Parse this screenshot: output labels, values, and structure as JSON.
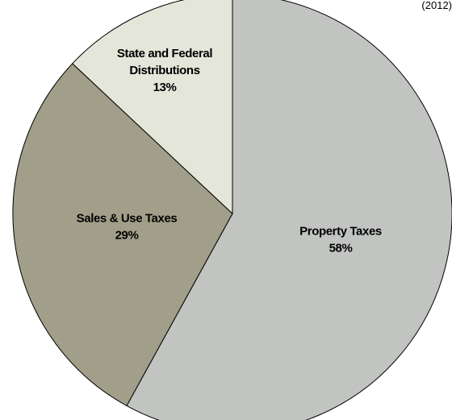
{
  "chart_data": {
    "type": "pie",
    "top_clipped_text": "(2012)",
    "slices": [
      {
        "label_lines": [
          "Property Taxes",
          "58%"
        ],
        "value": 58,
        "color": "#c1c4c1"
      },
      {
        "label_lines": [
          "Sales & Use Taxes",
          "29%"
        ],
        "value": 29,
        "color": "#a19f89"
      },
      {
        "label_lines": [
          "State and Federal",
          "Distributions",
          "13%"
        ],
        "value": 13,
        "color": "#e4e6d9"
      }
    ],
    "start": "top",
    "direction": "clockwise"
  }
}
